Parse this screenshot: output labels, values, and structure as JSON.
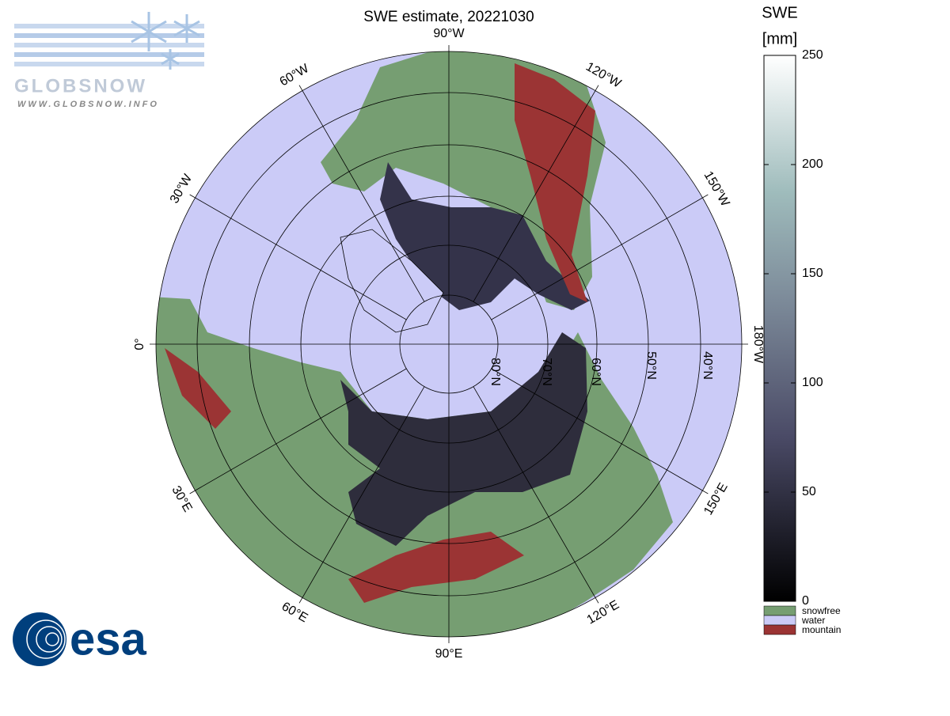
{
  "title": "SWE estimate, 20221030",
  "meridian_labels": [
    "90°W",
    "120°W",
    "150°W",
    "180°W",
    "150°E",
    "120°E",
    "90°E",
    "60°E",
    "30°E",
    "0°",
    "30°W",
    "60°W"
  ],
  "parallel_labels": [
    "80°N",
    "70°N",
    "60°N",
    "50°N",
    "40°N"
  ],
  "colorbar": {
    "title": "SWE",
    "unit": "[mm]",
    "range": [
      0,
      250
    ],
    "ticks": [
      0,
      50,
      100,
      150,
      200,
      250
    ],
    "legend": [
      {
        "name": "snowfree",
        "color": "#769e72"
      },
      {
        "name": "water",
        "color": "#cbcbf7"
      },
      {
        "name": "mountain",
        "color": "#9b3434"
      }
    ]
  },
  "logos": {
    "globsnow": "GLOBSNOW",
    "url": "WWW.GLOBSNOW.INFO",
    "esa": "esa"
  }
}
